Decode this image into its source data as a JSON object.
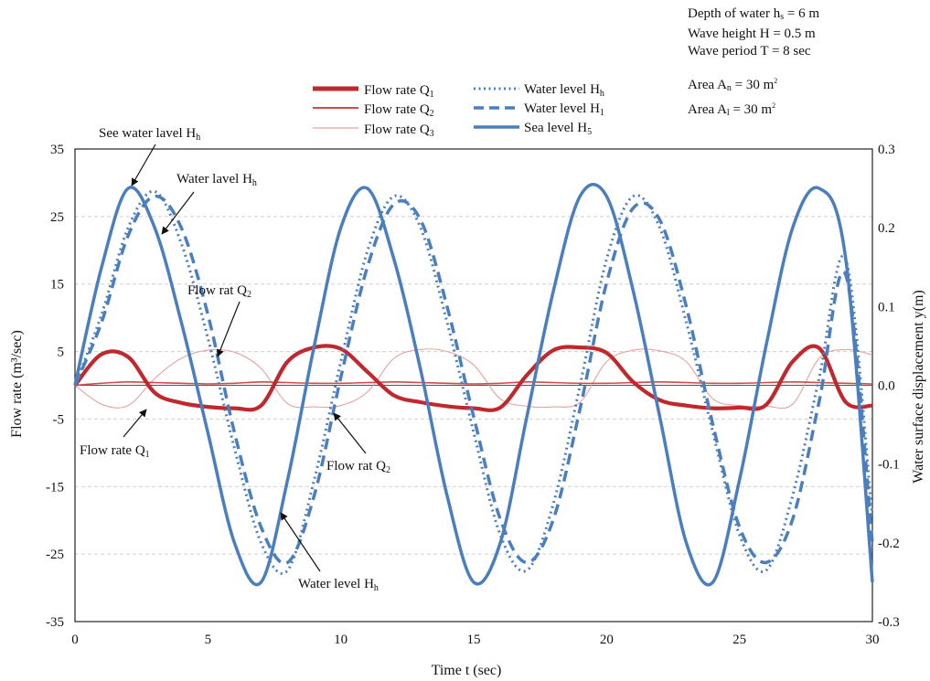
{
  "chart_data": {
    "type": "line",
    "xlabel": "Time t (sec)",
    "ylabel_left": "Flow rate (m³/sec)",
    "ylabel_right": "Water surface displacement y(m)",
    "xlim": [
      0,
      30
    ],
    "ylim_left": [
      -35,
      35
    ],
    "ylim_right": [
      -0.3,
      0.3
    ],
    "x_ticks": [
      0,
      5,
      10,
      15,
      20,
      25,
      30
    ],
    "y_left_ticks": [
      35,
      25,
      15,
      5,
      -5,
      -15,
      -25,
      -35
    ],
    "y_right_ticks": [
      "0.3",
      "0.2",
      "0.1",
      "0.0",
      "-0.1",
      "-0.2",
      "-0.3"
    ],
    "grid": "horizontal dashed",
    "x": [
      0,
      1,
      2,
      3,
      4,
      5,
      6,
      7,
      8,
      9,
      10,
      11,
      12,
      13,
      14,
      15,
      16,
      17,
      18,
      19,
      20,
      21,
      22,
      23,
      24,
      25,
      26,
      27,
      28,
      29,
      30
    ],
    "series": [
      {
        "name": "Flow rate Q1",
        "axis": "left",
        "color": "#c0282d",
        "style": "solid-thick",
        "values": [
          0,
          4.6,
          4.2,
          -1.1,
          -2.6,
          -3.2,
          -3.4,
          -3.0,
          3.5,
          5.6,
          5.4,
          2.0,
          -1.5,
          -2.5,
          -3.1,
          -3.4,
          -3.3,
          1.5,
          5.2,
          5.6,
          4.8,
          0.5,
          -2.2,
          -3.0,
          -3.4,
          -3.3,
          -2.9,
          3.5,
          5.5,
          -2.5,
          -3.0
        ]
      },
      {
        "name": "Flow rate Q2",
        "axis": "left",
        "color": "#d24a4a",
        "style": "solid",
        "values": [
          0,
          0.3,
          0.5,
          0.4,
          0.3,
          0.2,
          0.3,
          0.5,
          0.4,
          0.3,
          0.3,
          0.4,
          0.5,
          0.4,
          0.3,
          0.2,
          0.3,
          0.5,
          0.4,
          0.3,
          0.3,
          0.4,
          0.5,
          0.4,
          0.3,
          0.3,
          0.4,
          0.5,
          0.4,
          0.3,
          0.2
        ]
      },
      {
        "name": "Flow rate Q3",
        "axis": "left",
        "color": "#e6a2a2",
        "style": "solid-thin",
        "values": [
          0,
          -2.8,
          -3.0,
          1.0,
          4.0,
          5.2,
          4.9,
          2.5,
          -2.7,
          -3.2,
          -3.0,
          -1.0,
          4.0,
          5.3,
          5.0,
          3.0,
          -2.0,
          -3.1,
          -3.2,
          -2.5,
          3.5,
          5.2,
          5.1,
          3.5,
          -2.0,
          -3.0,
          -3.1,
          -2.8,
          4.0,
          5.3,
          4.5
        ]
      },
      {
        "name": "Water level Hh",
        "axis": "right",
        "color": "#4a7ebf",
        "style": "dotted",
        "values": [
          0,
          0.09,
          0.2,
          0.246,
          0.18,
          0.06,
          -0.08,
          -0.2,
          -0.235,
          -0.12,
          0.03,
          0.17,
          0.24,
          0.2,
          0.08,
          -0.06,
          -0.19,
          -0.235,
          -0.15,
          0.0,
          0.16,
          0.24,
          0.2,
          0.08,
          -0.06,
          -0.19,
          -0.235,
          -0.14,
          0.01,
          0.16,
          -0.17
        ]
      },
      {
        "name": "Water level H1",
        "axis": "right",
        "color": "#4a7ebf",
        "style": "dashed",
        "values": [
          0,
          0.08,
          0.19,
          0.24,
          0.2,
          0.09,
          -0.06,
          -0.18,
          -0.225,
          -0.14,
          0.01,
          0.15,
          0.23,
          0.21,
          0.1,
          -0.04,
          -0.17,
          -0.225,
          -0.17,
          -0.03,
          0.13,
          0.225,
          0.21,
          0.1,
          -0.05,
          -0.18,
          -0.225,
          -0.17,
          -0.02,
          0.14,
          -0.2
        ]
      },
      {
        "name": "Sea level H5",
        "axis": "right",
        "color": "#4a7ebf",
        "style": "solid",
        "values": [
          0,
          0.15,
          0.25,
          0.2,
          0.08,
          -0.06,
          -0.2,
          -0.25,
          -0.12,
          0.05,
          0.2,
          0.25,
          0.16,
          0.02,
          -0.14,
          -0.25,
          -0.2,
          -0.04,
          0.12,
          0.24,
          0.24,
          0.12,
          -0.04,
          -0.2,
          -0.25,
          -0.12,
          0.05,
          0.2,
          0.25,
          0.16,
          -0.25
        ]
      }
    ],
    "legend": {
      "placement": "top-center",
      "entries": [
        {
          "label": "Flow rate Q",
          "sub": "1"
        },
        {
          "label": "Flow rate Q",
          "sub": "2"
        },
        {
          "label": "Flow rate Q",
          "sub": "3"
        },
        {
          "label": "Water level H",
          "sub": "h"
        },
        {
          "label": "Water level H",
          "sub": "1"
        },
        {
          "label": "Sea level H",
          "sub": "5"
        }
      ]
    },
    "annotations": [
      {
        "text": "See water lavel H",
        "sub": "h"
      },
      {
        "text": "Water lavel H",
        "sub": "h"
      },
      {
        "text": "Flow rat Q",
        "sub": "2"
      },
      {
        "text": "Flow rate Q",
        "sub": "1"
      },
      {
        "text": "Flow rat Q",
        "sub": "2"
      },
      {
        "text": "Water level H",
        "sub": "h"
      }
    ],
    "parameters": {
      "depth": {
        "text": "Depth of water h",
        "sub": "s",
        "tail": " = 6 m"
      },
      "height": "Wave height H = 0.5 m",
      "period": "Wave period T = 8 sec",
      "area_n": {
        "text": "Area A",
        "sub": "n",
        "tail": " = 30 m",
        "sup": "2"
      },
      "area_l": {
        "text": "Area A",
        "sub": "l",
        "tail": " = 30 m",
        "sup": "2"
      }
    }
  }
}
